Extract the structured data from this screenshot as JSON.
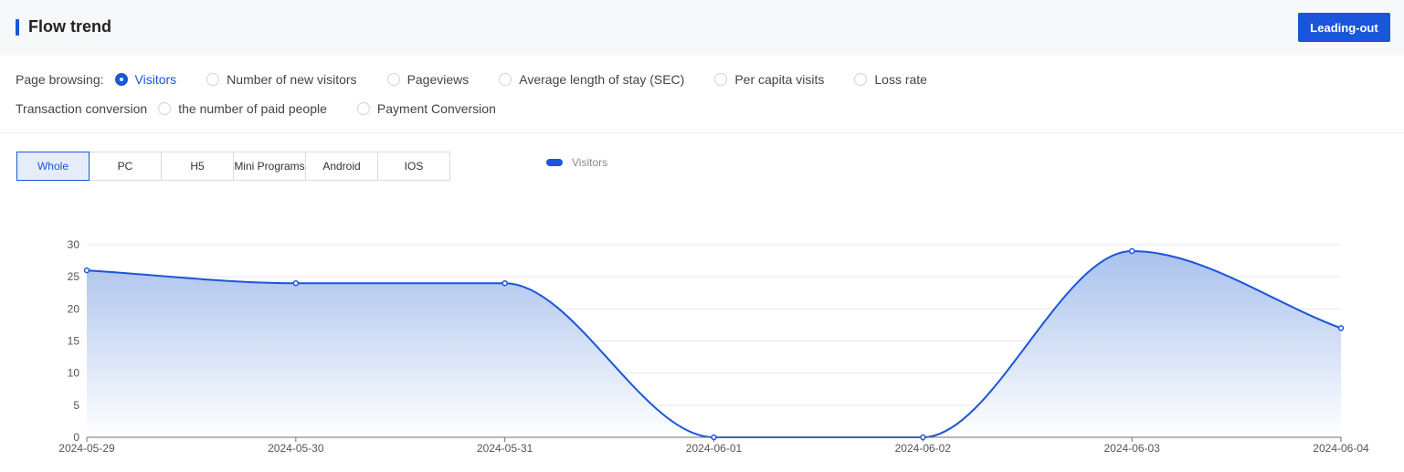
{
  "header": {
    "title": "Flow trend",
    "export_label": "Leading-out"
  },
  "filters": {
    "row1": {
      "label": "Page browsing:",
      "options": [
        "Visitors",
        "Number of new visitors",
        "Pageviews",
        "Average length of stay (SEC)",
        "Per capita visits",
        "Loss rate"
      ],
      "selected": "Visitors"
    },
    "row2": {
      "label": "Transaction conversion",
      "options": [
        "the number of paid people",
        "Payment Conversion"
      ]
    }
  },
  "tabs": [
    "Whole",
    "PC",
    "H5",
    "Mini Programs",
    "Android",
    "IOS"
  ],
  "active_tab": "Whole",
  "colors": {
    "accent": "#1a56db",
    "area_top": "#a9c1ec",
    "area_bottom": "#ffffff"
  },
  "chart_data": {
    "type": "area",
    "x": [
      "2024-05-29",
      "2024-05-30",
      "2024-05-31",
      "2024-06-01",
      "2024-06-02",
      "2024-06-03",
      "2024-06-04"
    ],
    "series": [
      {
        "name": "Visitors",
        "values": [
          26,
          24,
          24,
          0,
          0,
          29,
          17
        ]
      }
    ],
    "yticks": [
      0,
      5,
      10,
      15,
      20,
      25,
      30
    ],
    "ylim": [
      0,
      30
    ],
    "grid": true,
    "smooth": true,
    "legend": "top-center"
  }
}
